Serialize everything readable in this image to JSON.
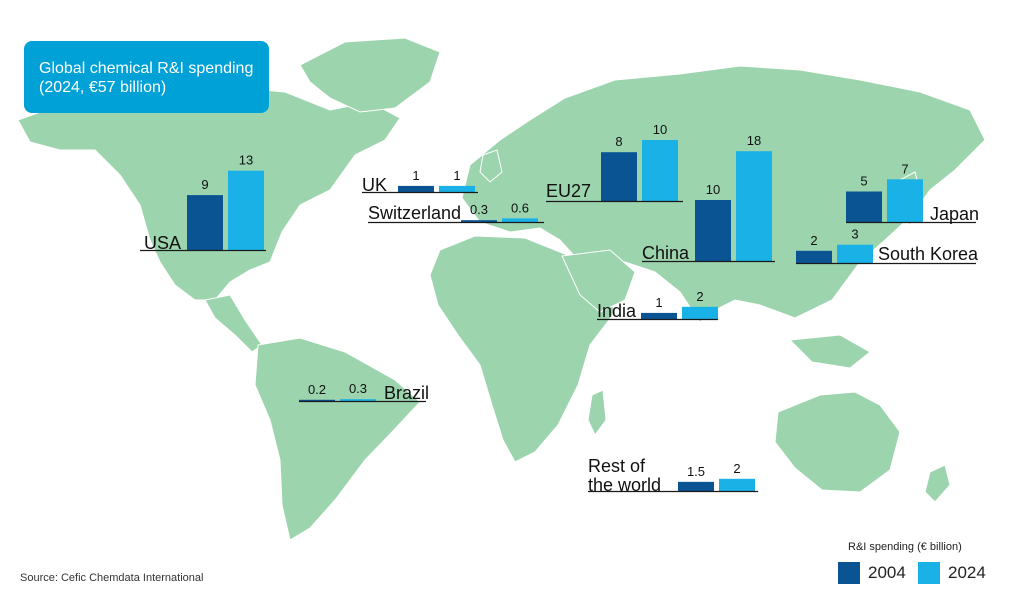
{
  "title": {
    "line1": "Global chemical R&I spending",
    "line2": "(2024, €57 billion)"
  },
  "source": "Source: Cefic Chemdata International",
  "legend": {
    "title": "R&I spending (€ billion)",
    "items": [
      {
        "label": "2004",
        "color": "#0a5494"
      },
      {
        "label": "2024",
        "color": "#1ab2e6"
      }
    ]
  },
  "colors": {
    "land": "#9cd4ae",
    "series_2004": "#0a5494",
    "series_2024": "#1ab2e6",
    "title_box": "#00a1d6"
  },
  "chart_data": {
    "type": "bar",
    "title": "Global chemical R&I spending",
    "subtitle": "(2024, €57 billion)",
    "unit": "€ billion",
    "series": [
      {
        "name": "2004",
        "values": [
          9,
          1,
          0.3,
          8,
          10,
          5,
          2,
          1,
          0.2,
          1.5
        ]
      },
      {
        "name": "2024",
        "values": [
          13,
          1,
          0.6,
          10,
          18,
          7,
          3,
          2,
          0.3,
          2
        ]
      }
    ],
    "categories": [
      "USA",
      "UK",
      "Switzerland",
      "EU27",
      "China",
      "Japan",
      "South Korea",
      "India",
      "Brazil",
      "Rest of the world"
    ],
    "regions": [
      {
        "label_lines": [
          "USA"
        ],
        "v2004": 9,
        "v2024": 13,
        "label_2004": "9",
        "label_2024": "13"
      },
      {
        "label_lines": [
          "UK"
        ],
        "v2004": 1,
        "v2024": 1,
        "label_2004": "1",
        "label_2024": "1"
      },
      {
        "label_lines": [
          "Switzerland"
        ],
        "v2004": 0.3,
        "v2024": 0.6,
        "label_2004": "0.3",
        "label_2024": "0.6"
      },
      {
        "label_lines": [
          "EU27"
        ],
        "v2004": 8,
        "v2024": 10,
        "label_2004": "8",
        "label_2024": "10"
      },
      {
        "label_lines": [
          "China"
        ],
        "v2004": 10,
        "v2024": 18,
        "label_2004": "10",
        "label_2024": "18"
      },
      {
        "label_lines": [
          "Japan"
        ],
        "v2004": 5,
        "v2024": 7,
        "label_2004": "5",
        "label_2024": "7"
      },
      {
        "label_lines": [
          "South Korea"
        ],
        "v2004": 2,
        "v2024": 3,
        "label_2004": "2",
        "label_2024": "3"
      },
      {
        "label_lines": [
          "India"
        ],
        "v2004": 1,
        "v2024": 2,
        "label_2004": "1",
        "label_2024": "2"
      },
      {
        "label_lines": [
          "Brazil"
        ],
        "v2004": 0.2,
        "v2024": 0.3,
        "label_2004": "0.2",
        "label_2024": "0.3"
      },
      {
        "label_lines": [
          "Rest of",
          "the world"
        ],
        "v2004": 1.5,
        "v2024": 2,
        "label_2004": "1.5",
        "label_2024": "2"
      }
    ]
  }
}
